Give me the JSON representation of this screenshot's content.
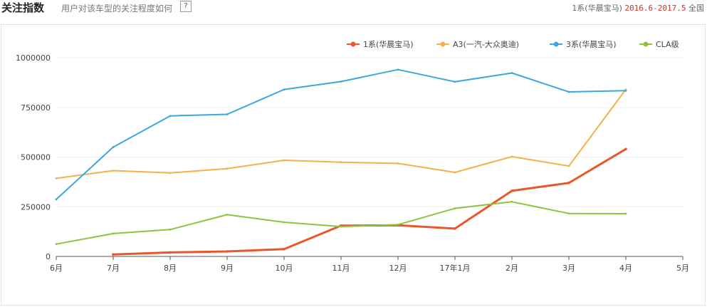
{
  "header": {
    "title": "关注指数",
    "subtitle": "用户对该车型的关注程度如何",
    "help": "?",
    "car": "1系(华晨宝马)",
    "range": "2016.6-2017.5",
    "region": "全国"
  },
  "colors": {
    "s1": "#e8582a",
    "s2": "#f5b04a",
    "s3": "#3aa8e0",
    "s4": "#8cc43f"
  },
  "chart_data": {
    "type": "line",
    "categories": [
      "6月",
      "7月",
      "8月",
      "9月",
      "10月",
      "11月",
      "12月",
      "17年1月",
      "2月",
      "3月",
      "4月",
      "5月"
    ],
    "ylim": [
      0,
      1000000
    ],
    "yticks": [
      0,
      250000,
      500000,
      750000,
      1000000
    ],
    "yticklabels": [
      "0",
      "250000",
      "500000",
      "750000",
      "1000000"
    ],
    "legend_position": "top-right",
    "series": [
      {
        "name": "1系(华晨宝马)",
        "color": "#e8582a",
        "values": [
          null,
          10000,
          20000,
          25000,
          37000,
          155000,
          157000,
          140000,
          330000,
          370000,
          540000,
          null
        ]
      },
      {
        "name": "A3(一汽-大众奥迪)",
        "color": "#f5b04a",
        "values": [
          393000,
          432000,
          420000,
          442000,
          484000,
          474000,
          468000,
          423000,
          502000,
          455000,
          840000,
          null
        ]
      },
      {
        "name": "3系(华晨宝马)",
        "color": "#3aa8e0",
        "values": [
          287000,
          550000,
          707000,
          715000,
          840000,
          880000,
          940000,
          879000,
          923000,
          828000,
          834000,
          null
        ]
      },
      {
        "name": "CLA级",
        "color": "#8cc43f",
        "values": [
          62000,
          115000,
          135000,
          210000,
          172000,
          150000,
          160000,
          242000,
          275000,
          216000,
          215000,
          null
        ]
      }
    ]
  }
}
